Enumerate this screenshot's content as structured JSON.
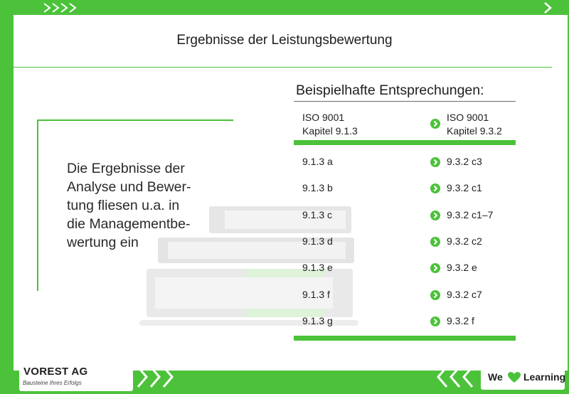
{
  "title": "Ergebnisse der Leistungsbewertung",
  "main_text_lines": [
    "Die Ergebnisse der",
    "Analyse und Bewer-",
    "tung fliesen u.a. in",
    "die Managementbe-",
    "wertung ein"
  ],
  "table": {
    "heading": "Beispielhafte Entsprechungen:",
    "col_left": [
      "ISO 9001",
      "Kapitel 9.1.3"
    ],
    "col_right": [
      "ISO 9001",
      "Kapitel 9.3.2"
    ],
    "rows": [
      {
        "left": "9.1.3 a",
        "right": "9.3.2 c3"
      },
      {
        "left": "9.1.3 b",
        "right": "9.3.2 c1"
      },
      {
        "left": "9.1.3 c",
        "right": "9.3.2 c1–7"
      },
      {
        "left": "9.1.3 d",
        "right": "9.3.2 c2"
      },
      {
        "left": "9.1.3 e",
        "right": "9.3.2 e"
      },
      {
        "left": "9.1.3 f",
        "right": "9.3.2 c7"
      },
      {
        "left": "9.1.3 g",
        "right": "9.3.2 f"
      }
    ]
  },
  "footer": {
    "logo": "VOREST AG",
    "tagline": "Bausteine Ihres Erfolgs",
    "slogan_we": "We",
    "slogan_learning": "Learning"
  },
  "colors": {
    "accent": "#4cc23a",
    "text": "#1e1e1e",
    "background": "#ffffff"
  },
  "icons": [
    "chevron-right-icon",
    "heart-icon",
    "books-illustration"
  ]
}
